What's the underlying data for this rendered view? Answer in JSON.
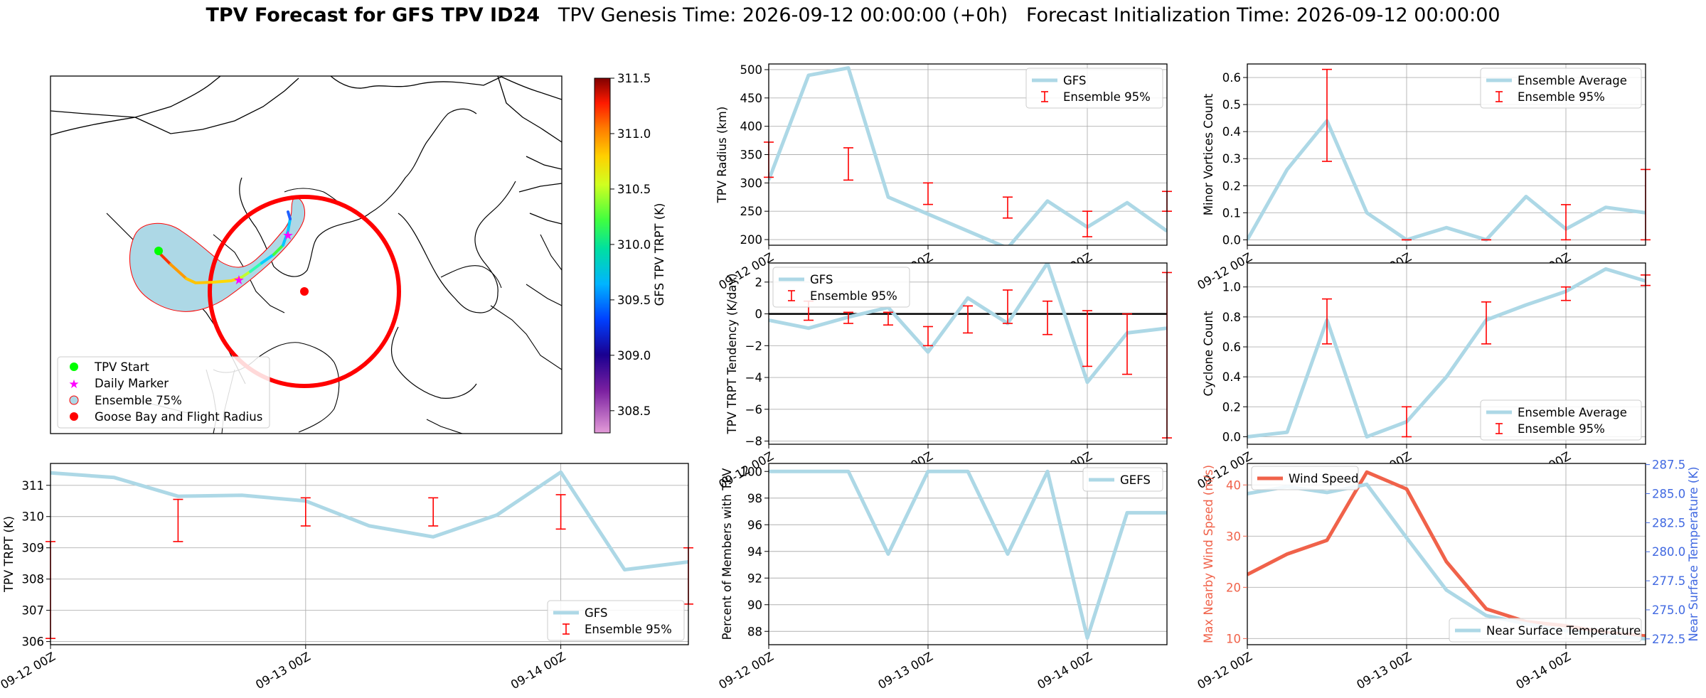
{
  "title": {
    "bold": "TPV Forecast for GFS TPV ID24",
    "genesis": "TPV Genesis Time: 2026-09-12 00:00:00 (+0h)",
    "init": "Forecast Initialization Time: 2026-09-12 00:00:00"
  },
  "colors": {
    "gfs_line": "#add8e6",
    "errorbar": "#ff0000",
    "wind_line": "#f0624a",
    "temp_axis": "#4169e1",
    "wind_axis": "#f0624a",
    "goose_radius": "#ff0000"
  },
  "map": {
    "legend": [
      {
        "label": "TPV Start",
        "marker": "circle",
        "color": "#00ff00"
      },
      {
        "label": "Daily Marker",
        "marker": "star",
        "color": "#ff00ff"
      },
      {
        "label": "Ensemble 75%",
        "marker": "circle",
        "color": "#add8e6"
      },
      {
        "label": "Goose Bay and Flight Radius",
        "marker": "circle",
        "color": "#ff0000"
      }
    ],
    "colorbar": {
      "label": "GFS TPV TRPT (K)",
      "min": 308.3,
      "max": 311.5,
      "ticks": [
        308.5,
        309.0,
        309.5,
        310.0,
        310.5,
        311.0,
        311.5
      ],
      "tick_labels": [
        "308.5",
        "309.0",
        "309.5",
        "310.0",
        "310.5",
        "311.0",
        "311.5"
      ]
    }
  },
  "chart_data": [
    {
      "id": "radius",
      "type": "line",
      "ylabel": "TPV Radius (km)",
      "x": [
        0,
        6,
        12,
        18,
        24,
        30,
        36,
        42,
        48,
        54,
        60
      ],
      "xlim": [
        0,
        60
      ],
      "xticks": [
        0,
        24,
        48
      ],
      "xtick_labels": [
        "09-12 00Z",
        "09-13 00Z",
        "09-14 00Z"
      ],
      "ylim": [
        190,
        510
      ],
      "yticks": [
        200,
        250,
        300,
        350,
        400,
        450,
        500
      ],
      "ytick_labels": [
        "200",
        "250",
        "300",
        "350",
        "400",
        "450",
        "500"
      ],
      "grid": true,
      "legend_position": "upper right",
      "series": [
        {
          "name": "GFS",
          "values": [
            305,
            490,
            503,
            275,
            245,
            215,
            185,
            268,
            222,
            265,
            215
          ]
        }
      ],
      "errorbars": {
        "name": "Ensemble 95%",
        "x": [
          0,
          12,
          24,
          36,
          48,
          60
        ],
        "low": [
          310,
          305,
          262,
          238,
          205,
          250
        ],
        "high": [
          372,
          362,
          300,
          275,
          250,
          285
        ]
      }
    },
    {
      "id": "minor",
      "type": "line",
      "ylabel": "Minor Vortices Count",
      "x": [
        0,
        6,
        12,
        18,
        24,
        30,
        36,
        42,
        48,
        54,
        60
      ],
      "xlim": [
        0,
        60
      ],
      "xticks": [
        0,
        24,
        48
      ],
      "xtick_labels": [
        "09-12 00Z",
        "09-13 00Z",
        "09-14 00Z"
      ],
      "ylim": [
        -0.02,
        0.65
      ],
      "yticks": [
        0,
        0.1,
        0.2,
        0.3,
        0.4,
        0.5,
        0.6
      ],
      "ytick_labels": [
        "0.0",
        "0.1",
        "0.2",
        "0.3",
        "0.4",
        "0.5",
        "0.6"
      ],
      "grid": true,
      "legend_position": "upper right",
      "series": [
        {
          "name": "Ensemble Average",
          "values": [
            0.0,
            0.26,
            0.44,
            0.1,
            0.0,
            0.045,
            0.0,
            0.16,
            0.04,
            0.12,
            0.1
          ]
        }
      ],
      "errorbars": {
        "name": "Ensemble 95%",
        "x": [
          12,
          24,
          36,
          48,
          60
        ],
        "low": [
          0.29,
          0.0,
          0.0,
          0.0,
          0.0
        ],
        "high": [
          0.63,
          0.0,
          0.0,
          0.13,
          0.26
        ]
      }
    },
    {
      "id": "tendency",
      "type": "line",
      "ylabel": "TPV TRPT Tendency (K/day)",
      "x": [
        0,
        6,
        12,
        18,
        24,
        30,
        36,
        42,
        48,
        54,
        60
      ],
      "xlim": [
        0,
        60
      ],
      "xticks": [
        0,
        24,
        48
      ],
      "xtick_labels": [
        "09-12 00Z",
        "09-13 00Z",
        "09-14 00Z"
      ],
      "ylim": [
        -8.2,
        3.2
      ],
      "yticks": [
        -8,
        -6,
        -4,
        -2,
        0,
        2
      ],
      "ytick_labels": [
        "−8",
        "−6",
        "−4",
        "−2",
        "0",
        "2"
      ],
      "grid": true,
      "legend_position": "upper left",
      "zero_line": true,
      "series": [
        {
          "name": "GFS",
          "values": [
            -0.4,
            -0.9,
            -0.2,
            0.4,
            -2.4,
            1.0,
            -0.6,
            3.2,
            -4.3,
            -1.2,
            -0.9
          ]
        }
      ],
      "errorbars": {
        "name": "Ensemble 95%",
        "x": [
          6,
          12,
          18,
          24,
          30,
          36,
          42,
          48,
          54,
          60
        ],
        "low": [
          -0.4,
          -0.6,
          -0.7,
          -2.0,
          -1.2,
          -0.6,
          -1.3,
          -3.3,
          -3.8,
          -7.8
        ],
        "high": [
          0.8,
          0.1,
          0.1,
          -0.8,
          0.5,
          1.5,
          0.8,
          0.2,
          0.0,
          2.6
        ]
      }
    },
    {
      "id": "cyclone",
      "type": "line",
      "ylabel": "Cyclone Count",
      "x": [
        0,
        6,
        12,
        18,
        24,
        30,
        36,
        42,
        48,
        54,
        60
      ],
      "xlim": [
        0,
        60
      ],
      "xticks": [
        0,
        24,
        48
      ],
      "xtick_labels": [
        "09-12 00Z",
        "09-13 00Z",
        "09-14 00Z"
      ],
      "ylim": [
        -0.05,
        1.16
      ],
      "yticks": [
        0,
        0.2,
        0.4,
        0.6,
        0.8,
        1.0
      ],
      "ytick_labels": [
        "0.0",
        "0.2",
        "0.4",
        "0.6",
        "0.8",
        "1.0"
      ],
      "grid": true,
      "legend_position": "lower right",
      "series": [
        {
          "name": "Ensemble Average",
          "values": [
            0.0,
            0.03,
            0.78,
            0.0,
            0.1,
            0.4,
            0.78,
            0.88,
            0.97,
            1.12,
            1.04
          ]
        }
      ],
      "errorbars": {
        "name": "Ensemble 95%",
        "x": [
          12,
          24,
          36,
          48,
          60
        ],
        "low": [
          0.62,
          0.0,
          0.62,
          0.91,
          1.01
        ],
        "high": [
          0.92,
          0.2,
          0.9,
          1.0,
          1.08
        ]
      }
    },
    {
      "id": "trpt",
      "type": "line",
      "ylabel": "TPV TRPT (K)",
      "x": [
        0,
        6,
        12,
        18,
        24,
        30,
        36,
        42,
        48,
        54,
        60
      ],
      "xlim": [
        0,
        60
      ],
      "xticks": [
        0,
        24,
        48
      ],
      "xtick_labels": [
        "09-12 00Z",
        "09-13 00Z",
        "09-14 00Z"
      ],
      "ylim": [
        305.9,
        311.7
      ],
      "yticks": [
        306,
        307,
        308,
        309,
        310,
        311
      ],
      "ytick_labels": [
        "306",
        "307",
        "308",
        "309",
        "310",
        "311"
      ],
      "grid": true,
      "legend_position": "lower right",
      "series": [
        {
          "name": "GFS",
          "values": [
            311.4,
            311.25,
            310.65,
            310.68,
            310.5,
            309.7,
            309.35,
            310.05,
            311.42,
            308.3,
            308.55
          ]
        }
      ],
      "errorbars": {
        "name": "Ensemble 95%",
        "x": [
          0,
          12,
          24,
          36,
          48,
          60
        ],
        "low": [
          306.1,
          309.2,
          309.7,
          309.7,
          309.6,
          307.2
        ],
        "high": [
          309.2,
          310.55,
          310.6,
          310.6,
          310.7,
          309.0
        ]
      }
    },
    {
      "id": "members",
      "type": "line",
      "ylabel": "Percent of Members with TPV",
      "x": [
        0,
        6,
        12,
        18,
        24,
        30,
        36,
        42,
        48,
        54,
        60
      ],
      "xlim": [
        0,
        60
      ],
      "xticks": [
        0,
        24,
        48
      ],
      "xtick_labels": [
        "09-12 00Z",
        "09-13 00Z",
        "09-14 00Z"
      ],
      "ylim": [
        87.0,
        100.6
      ],
      "yticks": [
        88,
        90,
        92,
        94,
        96,
        98,
        100
      ],
      "ytick_labels": [
        "88",
        "90",
        "92",
        "94",
        "96",
        "98",
        "100"
      ],
      "grid": true,
      "legend_position": "upper right",
      "series": [
        {
          "name": "GEFS",
          "values": [
            100,
            100,
            100,
            93.8,
            100,
            100,
            93.8,
            100,
            87.5,
            96.9,
            96.9
          ]
        }
      ]
    },
    {
      "id": "wind_temp",
      "type": "line",
      "ylabel": "Max Nearby Wind Speed (m/s)",
      "y2label": "Near Surface Temperature (K)",
      "x": [
        0,
        6,
        12,
        18,
        24,
        30,
        36,
        42,
        48,
        54,
        60
      ],
      "xlim": [
        0,
        60
      ],
      "xticks": [
        0,
        24,
        48
      ],
      "xtick_labels": [
        "09-12 00Z",
        "09-13 00Z",
        "09-14 00Z"
      ],
      "ylim": [
        8.8,
        44.2
      ],
      "yticks": [
        10,
        20,
        30,
        40
      ],
      "ytick_labels": [
        "10",
        "20",
        "30",
        "40"
      ],
      "y2lim": [
        272.0,
        287.6
      ],
      "y2ticks": [
        272.5,
        275.0,
        277.5,
        280.0,
        282.5,
        285.0,
        287.5
      ],
      "y2tick_labels": [
        "272.5",
        "275.0",
        "277.5",
        "280.0",
        "282.5",
        "285.0",
        "287.5"
      ],
      "grid": true,
      "series": [
        {
          "name": "Wind Speed",
          "axis": "left",
          "values": [
            22.5,
            26.5,
            29.2,
            42.5,
            39.2,
            25.0,
            15.8,
            13.3,
            12.5,
            11.2,
            10.5
          ]
        },
        {
          "name": "Near Surface Temperature",
          "axis": "right",
          "values": [
            285.0,
            285.6,
            285.1,
            285.8,
            281.2,
            276.7,
            274.5,
            273.8,
            273.2,
            272.8,
            272.5
          ]
        }
      ]
    }
  ]
}
